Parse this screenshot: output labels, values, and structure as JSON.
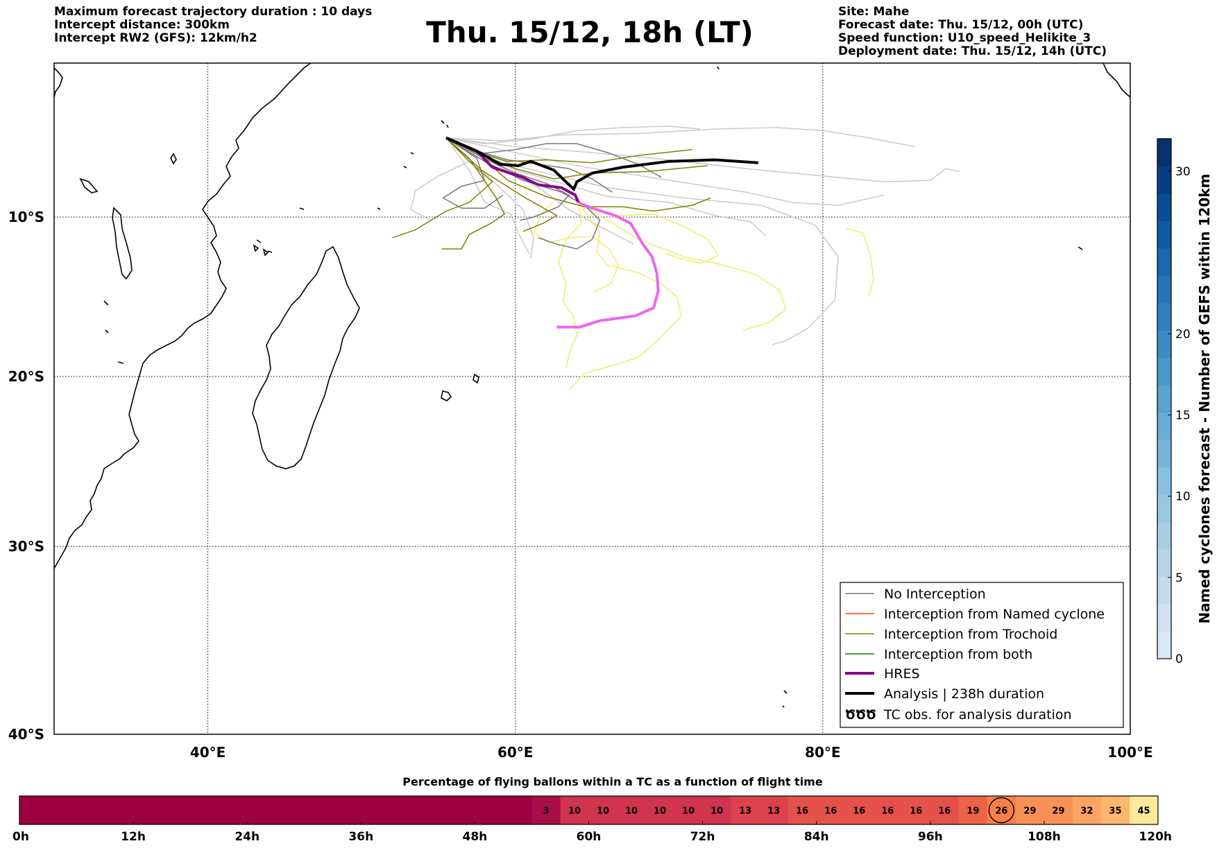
{
  "header": {
    "title": "Thu. 15/12, 18h (LT)",
    "left_info": [
      "Maximum forecast trajectory duration : 10 days",
      "Intercept distance: 300km",
      "Intercept RW2 (GFS):  12km/h2"
    ],
    "right_info": [
      "Site: Mahe",
      "Forecast date: Thu. 15/12, 00h (UTC)",
      "Speed function: U10_speed_Helikite_3",
      "Deployment date: Thu. 15/12, 14h (UTC)"
    ]
  },
  "map": {
    "lon_range": [
      30,
      100
    ],
    "lat_range": [
      -40,
      0.5
    ],
    "lon_ticks": [
      {
        "value": 40,
        "label": "40°E"
      },
      {
        "value": 60,
        "label": "60°E"
      },
      {
        "value": 80,
        "label": "80°E"
      },
      {
        "value": 100,
        "label": "100°E"
      }
    ],
    "lat_ticks": [
      {
        "value": -10,
        "label": "10°S"
      },
      {
        "value": -20,
        "label": "20°S"
      },
      {
        "value": -30,
        "label": "30°S"
      },
      {
        "value": -40,
        "label": "40°S"
      }
    ],
    "gridlines": "dotted",
    "colors": {
      "no_interception": "#777777",
      "no_interception_light": "#cccccc",
      "named_cyclone": "#ff4500",
      "trochoid": "#808000",
      "both": "#008000",
      "hres": "#8b008b",
      "hres_light": "#ee66ee",
      "trochoid_light": "#eeee66",
      "analysis": "#000000"
    },
    "analysis_track": [
      [
        55.5,
        -4.6
      ],
      [
        57.5,
        -5.5
      ],
      [
        59,
        -6.4
      ],
      [
        60.2,
        -6.5
      ],
      [
        61,
        -6.2
      ],
      [
        62.5,
        -6.8
      ],
      [
        63.8,
        -8.1
      ],
      [
        64.0,
        -7.6
      ],
      [
        65,
        -7.0
      ],
      [
        67,
        -6.6
      ],
      [
        70,
        -6.2
      ],
      [
        73,
        -6.1
      ],
      [
        75.8,
        -6.3
      ]
    ],
    "hres_track_dark": [
      [
        55.5,
        -4.6
      ],
      [
        57.5,
        -5.5
      ],
      [
        58.5,
        -6.6
      ],
      [
        60.5,
        -7.3
      ],
      [
        61.5,
        -7.8
      ],
      [
        63,
        -8.0
      ],
      [
        63.9,
        -8.5
      ],
      [
        64.1,
        -9.0
      ]
    ],
    "hres_track_light": [
      [
        64.1,
        -9.0
      ],
      [
        65,
        -9.4
      ],
      [
        66.5,
        -9.9
      ],
      [
        67.5,
        -10.4
      ],
      [
        68.3,
        -11.7
      ],
      [
        68.9,
        -12.5
      ],
      [
        69.2,
        -13.5
      ],
      [
        69.3,
        -14.6
      ],
      [
        69,
        -15.7
      ],
      [
        67.8,
        -16.2
      ],
      [
        65.5,
        -16.5
      ],
      [
        64.2,
        -16.9
      ],
      [
        62.7,
        -16.9
      ]
    ],
    "trochoid_tracks": [
      [
        [
          55.5,
          -4.6
        ],
        [
          57.5,
          -5.6
        ],
        [
          59.5,
          -6.2
        ],
        [
          62,
          -6.1
        ],
        [
          65,
          -6.3
        ],
        [
          68,
          -5.8
        ],
        [
          71.5,
          -5.4
        ]
      ],
      [
        [
          55.5,
          -4.6
        ],
        [
          57.5,
          -5.6
        ],
        [
          60,
          -6.7
        ],
        [
          62.5,
          -7.4
        ],
        [
          65,
          -7.0
        ],
        [
          68.5,
          -6.9
        ],
        [
          72.5,
          -6.5
        ]
      ],
      [
        [
          55.5,
          -4.6
        ],
        [
          57.5,
          -5.6
        ],
        [
          59.5,
          -7.5
        ],
        [
          62,
          -8.6
        ],
        [
          64.5,
          -9.3
        ],
        [
          67,
          -9.3
        ],
        [
          69,
          -9.6
        ],
        [
          71.5,
          -9.2
        ],
        [
          72.7,
          -8.7
        ]
      ],
      [
        [
          55.5,
          -4.6
        ],
        [
          57,
          -6.2
        ],
        [
          58.5,
          -7.6
        ],
        [
          57,
          -9.0
        ],
        [
          55.5,
          -9.6
        ],
        [
          53.5,
          -10.8
        ],
        [
          52.0,
          -11.3
        ]
      ],
      [
        [
          55.5,
          -4.6
        ],
        [
          57,
          -6.0
        ],
        [
          58.7,
          -8.6
        ],
        [
          59.3,
          -9.8
        ],
        [
          58.4,
          -10.4
        ],
        [
          57,
          -11.1
        ],
        [
          56.5,
          -12.0
        ],
        [
          55.2,
          -12.0
        ]
      ],
      [
        [
          55.5,
          -4.6
        ],
        [
          57.8,
          -6.8
        ],
        [
          60.5,
          -8.6
        ],
        [
          62.7,
          -9.9
        ],
        [
          61.8,
          -10.4
        ],
        [
          60.5,
          -10.9
        ]
      ]
    ],
    "no_interception_tracks": [
      [
        [
          55.5,
          -4.6
        ],
        [
          57.5,
          -5.7
        ],
        [
          60,
          -5.4
        ],
        [
          62,
          -5.0
        ],
        [
          64,
          -5.0
        ],
        [
          66,
          -5.6
        ],
        [
          68,
          -6.4
        ],
        [
          69.5,
          -7.3
        ]
      ],
      [
        [
          55.5,
          -4.6
        ],
        [
          57.5,
          -6.0
        ],
        [
          58,
          -7.5
        ],
        [
          56.5,
          -7.9
        ],
        [
          55.3,
          -8.7
        ],
        [
          56.5,
          -9.4
        ],
        [
          58,
          -9.4
        ],
        [
          59.2,
          -8.5
        ]
      ],
      [
        [
          55.5,
          -4.6
        ],
        [
          58,
          -6.2
        ],
        [
          60.5,
          -7.5
        ],
        [
          63,
          -8.3
        ],
        [
          64.5,
          -9.2
        ],
        [
          65.5,
          -10.2
        ],
        [
          65,
          -11.4
        ],
        [
          64,
          -12.0
        ],
        [
          62.7,
          -11.7
        ],
        [
          61.5,
          -11.3
        ]
      ],
      [
        [
          55.5,
          -4.6
        ],
        [
          57.5,
          -5.5
        ],
        [
          59.5,
          -6.1
        ],
        [
          61.5,
          -6.4
        ],
        [
          63.5,
          -6.7
        ],
        [
          65,
          -7.4
        ],
        [
          66.3,
          -8.3
        ]
      ],
      [
        [
          55.5,
          -4.6
        ],
        [
          57.8,
          -5.9
        ],
        [
          60,
          -7.0
        ],
        [
          62,
          -7.7
        ],
        [
          63.5,
          -8.5
        ],
        [
          62.8,
          -9.3
        ],
        [
          61.2,
          -10.0
        ],
        [
          60.3,
          -10.2
        ]
      ]
    ],
    "light_tracks": [
      [
        [
          55.5,
          -4.6
        ],
        [
          58,
          -5.0
        ],
        [
          61,
          -4.7
        ],
        [
          64,
          -4.1
        ],
        [
          67,
          -3.9
        ],
        [
          70,
          -3.8
        ],
        [
          72,
          -4.0
        ]
      ],
      [
        [
          55.5,
          -4.6
        ],
        [
          59,
          -4.8
        ],
        [
          63,
          -4.4
        ],
        [
          68,
          -4.3
        ],
        [
          73,
          -4.0
        ],
        [
          77,
          -3.9
        ],
        [
          80,
          -4.1
        ],
        [
          83,
          -4.6
        ],
        [
          86,
          -5.2
        ]
      ],
      [
        [
          55.5,
          -4.6
        ],
        [
          60,
          -5.2
        ],
        [
          65,
          -5.6
        ],
        [
          70,
          -6.1
        ],
        [
          75,
          -6.7
        ],
        [
          80,
          -7.2
        ],
        [
          84,
          -7.6
        ],
        [
          87,
          -7.5
        ],
        [
          88,
          -6.7
        ],
        [
          88.9,
          -6.9
        ]
      ],
      [
        [
          55.5,
          -4.6
        ],
        [
          60,
          -5.6
        ],
        [
          64,
          -6.5
        ],
        [
          70,
          -7.5
        ],
        [
          75,
          -8.3
        ],
        [
          78,
          -9.0
        ],
        [
          81,
          -9.2
        ],
        [
          84,
          -8.5
        ]
      ],
      [
        [
          55.5,
          -4.6
        ],
        [
          57,
          -6.2
        ],
        [
          55,
          -7.2
        ],
        [
          53.5,
          -8.2
        ],
        [
          53.2,
          -9.5
        ],
        [
          54.5,
          -10.2
        ]
      ],
      [
        [
          55.5,
          -4.6
        ],
        [
          58,
          -6.0
        ],
        [
          61.5,
          -8.0
        ],
        [
          63.5,
          -9.5
        ],
        [
          65.5,
          -10.6
        ],
        [
          67.7,
          -11.7
        ]
      ],
      [
        [
          55.5,
          -4.6
        ],
        [
          60,
          -6.5
        ],
        [
          66,
          -8.0
        ],
        [
          71,
          -8.7
        ],
        [
          76,
          -9.2
        ],
        [
          79.5,
          -10.5
        ],
        [
          81,
          -12.5
        ],
        [
          80.8,
          -15.2
        ],
        [
          79,
          -17.0
        ],
        [
          77.5,
          -17.8
        ],
        [
          76.7,
          -18.0
        ]
      ],
      [
        [
          55.5,
          -4.6
        ],
        [
          60,
          -6.8
        ],
        [
          66,
          -8.6
        ],
        [
          70,
          -9.0
        ],
        [
          73,
          -9.9
        ],
        [
          75.3,
          -10.3
        ],
        [
          76.3,
          -11.2
        ]
      ],
      [
        [
          55.5,
          -4.6
        ],
        [
          58,
          -7.0
        ],
        [
          60.5,
          -9.5
        ],
        [
          61.2,
          -11.3
        ],
        [
          61,
          -12.6
        ]
      ],
      [
        [
          55.5,
          -4.6
        ],
        [
          57,
          -6.8
        ],
        [
          58,
          -9.0
        ],
        [
          59.7,
          -9.8
        ],
        [
          60.2,
          -11.0
        ],
        [
          60.9,
          -12.3
        ]
      ]
    ],
    "yellow_tracks": [
      [
        [
          64.1,
          -9.0
        ],
        [
          66,
          -10.2
        ],
        [
          68,
          -11.4
        ],
        [
          71,
          -12.5
        ],
        [
          73.5,
          -13.0
        ],
        [
          75.6,
          -13.6
        ],
        [
          77.2,
          -14.6
        ],
        [
          77.6,
          -15.8
        ],
        [
          76.5,
          -16.6
        ],
        [
          74.8,
          -17.1
        ]
      ],
      [
        [
          64.1,
          -9.0
        ],
        [
          65.5,
          -11.0
        ],
        [
          65.3,
          -12.2
        ],
        [
          66,
          -13.0
        ],
        [
          68,
          -13.5
        ],
        [
          69.5,
          -14.2
        ],
        [
          70.5,
          -15.0
        ],
        [
          70.8,
          -16.2
        ],
        [
          70,
          -17.0
        ],
        [
          69.2,
          -17.8
        ],
        [
          68,
          -18.8
        ],
        [
          66,
          -19.4
        ],
        [
          64.5,
          -19.8
        ],
        [
          63.5,
          -20.8
        ]
      ],
      [
        [
          64.1,
          -9.0
        ],
        [
          64.3,
          -10.4
        ],
        [
          63.3,
          -11.4
        ],
        [
          62.8,
          -12.8
        ],
        [
          63.3,
          -14.2
        ],
        [
          63.1,
          -15.3
        ],
        [
          63.8,
          -16.3
        ],
        [
          64.0,
          -17.4
        ],
        [
          63.5,
          -18.6
        ],
        [
          63.3,
          -19.5
        ]
      ],
      [
        [
          62.4,
          -9.0
        ],
        [
          61.6,
          -9.9
        ],
        [
          61.2,
          -11.0
        ],
        [
          62.2,
          -11.6
        ],
        [
          63.5,
          -11.3
        ],
        [
          65,
          -11.2
        ],
        [
          66.1,
          -12.0
        ],
        [
          66.7,
          -13.0
        ],
        [
          66.2,
          -14.2
        ],
        [
          65.1,
          -14.7
        ]
      ],
      [
        [
          64.1,
          -9.0
        ],
        [
          66.5,
          -9.9
        ],
        [
          69,
          -9.8
        ],
        [
          71,
          -10.6
        ],
        [
          72.5,
          -11.4
        ],
        [
          73.2,
          -12.4
        ],
        [
          72.1,
          -12.9
        ],
        [
          70.7,
          -12.6
        ],
        [
          69.8,
          -12.3
        ]
      ],
      [
        [
          81.5,
          -10.7
        ],
        [
          82.6,
          -11.0
        ],
        [
          83.1,
          -12.4
        ],
        [
          83.3,
          -13.9
        ],
        [
          83.0,
          -15.0
        ]
      ]
    ],
    "legend": [
      {
        "label": "No Interception",
        "style": "grey"
      },
      {
        "label": "Interception from Named cyclone",
        "style": "orangered"
      },
      {
        "label": "Interception from Trochoid",
        "style": "olive"
      },
      {
        "label": "Interception from both",
        "style": "green"
      },
      {
        "label": "HRES",
        "style": "purple-thick"
      },
      {
        "label": "Analysis | 238h duration",
        "style": "black-thick"
      },
      {
        "label": "TC obs. for analysis duration",
        "style": "cyclone-symbol"
      }
    ],
    "legend_symbol": "ԾԾԾ"
  },
  "colorbar": {
    "label": "Named cyclones forecast - Number of GEFS within 120km",
    "min": 0,
    "max": 32,
    "ticks": [
      0,
      5,
      10,
      15,
      20,
      30
    ],
    "colors": [
      "#dbe9f6",
      "#d0e1f2",
      "#c4daee",
      "#b7d4ea",
      "#a9cfe5",
      "#9ac8e0",
      "#8abfdd",
      "#79b5d9",
      "#69add5",
      "#5aa2cf",
      "#4b98ca",
      "#3d8dc4",
      "#3080bd",
      "#2474b7",
      "#1967ad",
      "#0f5aa3",
      "#084d96",
      "#083e81",
      "#08306b"
    ]
  },
  "timeline": {
    "title": "Percentage of flying ballons within a TC as a function of flight time",
    "hours": [
      0,
      120
    ],
    "tick_labels": [
      "0h",
      "12h",
      "24h",
      "36h",
      "48h",
      "60h",
      "72h",
      "84h",
      "96h",
      "108h",
      "120h"
    ],
    "highlight_value": "26",
    "cells": [
      {
        "v": "",
        "c": "#9e0142"
      },
      {
        "v": "",
        "c": "#9e0142"
      },
      {
        "v": "",
        "c": "#9e0142"
      },
      {
        "v": "",
        "c": "#9e0142"
      },
      {
        "v": "",
        "c": "#9e0142"
      },
      {
        "v": "",
        "c": "#9e0142"
      },
      {
        "v": "",
        "c": "#9e0142"
      },
      {
        "v": "",
        "c": "#9e0142"
      },
      {
        "v": "",
        "c": "#9e0142"
      },
      {
        "v": "",
        "c": "#9e0142"
      },
      {
        "v": "",
        "c": "#9e0142"
      },
      {
        "v": "",
        "c": "#9e0142"
      },
      {
        "v": "",
        "c": "#9e0142"
      },
      {
        "v": "",
        "c": "#9e0142"
      },
      {
        "v": "",
        "c": "#9e0142"
      },
      {
        "v": "",
        "c": "#9e0142"
      },
      {
        "v": "",
        "c": "#9e0142"
      },
      {
        "v": "",
        "c": "#9e0142"
      },
      {
        "v": "3",
        "c": "#a80d45"
      },
      {
        "v": "10",
        "c": "#d0344f"
      },
      {
        "v": "10",
        "c": "#d0344f"
      },
      {
        "v": "10",
        "c": "#d0344f"
      },
      {
        "v": "10",
        "c": "#d0344f"
      },
      {
        "v": "10",
        "c": "#d0344f"
      },
      {
        "v": "10",
        "c": "#d0344f"
      },
      {
        "v": "13",
        "c": "#dc424e"
      },
      {
        "v": "13",
        "c": "#dc424e"
      },
      {
        "v": "16",
        "c": "#e5514b"
      },
      {
        "v": "16",
        "c": "#e5514b"
      },
      {
        "v": "16",
        "c": "#e5514b"
      },
      {
        "v": "16",
        "c": "#e5514b"
      },
      {
        "v": "16",
        "c": "#e5514b"
      },
      {
        "v": "16",
        "c": "#e5514b"
      },
      {
        "v": "19",
        "c": "#ee6347"
      },
      {
        "v": "26",
        "c": "#f67e4b"
      },
      {
        "v": "29",
        "c": "#f99157"
      },
      {
        "v": "29",
        "c": "#f99157"
      },
      {
        "v": "32",
        "c": "#fca462"
      },
      {
        "v": "35",
        "c": "#fdb66d"
      },
      {
        "v": "45",
        "c": "#fee89a"
      }
    ]
  }
}
